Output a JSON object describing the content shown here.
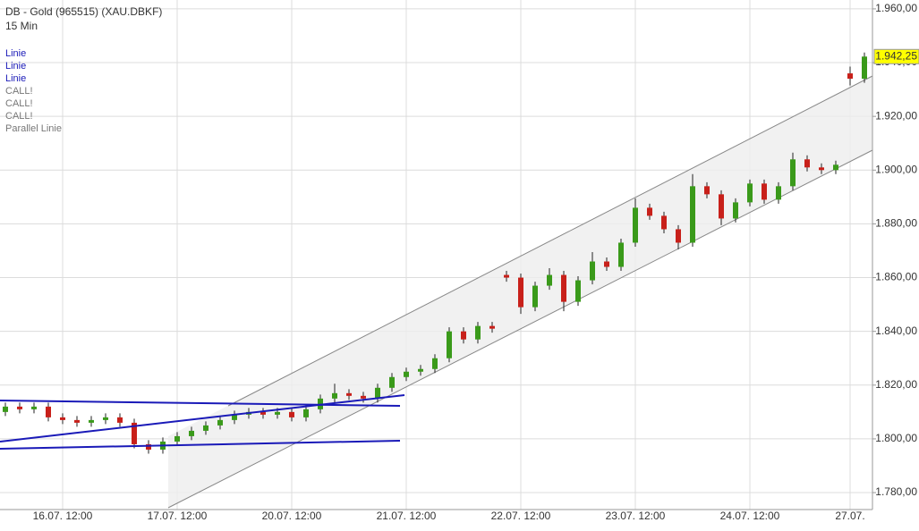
{
  "chart_data": {
    "type": "candlestick",
    "title": "DB - Gold (965515) (XAU.DBKF)",
    "subtitle": "15 Min",
    "legend": [
      "Linie",
      "Linie",
      "Linie",
      "CALL!",
      "CALL!",
      "CALL!",
      "Parallel Linie"
    ],
    "categories": [
      null,
      null,
      null,
      null,
      "16.07. 12:00",
      null,
      null,
      null,
      null,
      null,
      null,
      null,
      "17.07. 12:00",
      null,
      null,
      null,
      null,
      null,
      null,
      null,
      "20.07. 12:00",
      null,
      null,
      null,
      null,
      null,
      null,
      null,
      "21.07. 12:00",
      null,
      null,
      null,
      null,
      null,
      null,
      null,
      "22.07. 12:00",
      null,
      null,
      null,
      null,
      null,
      null,
      null,
      "23.07. 12:00",
      null,
      null,
      null,
      null,
      null,
      null,
      null,
      "24.07. 12:00",
      null,
      null,
      null,
      null,
      null,
      null,
      "27.07.",
      null
    ],
    "open": [
      1810,
      1812,
      1811,
      1812,
      1808,
      1807,
      1806,
      1807,
      1808,
      1806,
      1798,
      1796,
      1799,
      1801,
      1803,
      1805,
      1807,
      1809,
      1810,
      1809,
      1810,
      1808,
      1811,
      1815,
      1817,
      1816,
      1815,
      1819,
      1823,
      1825,
      1826,
      1830,
      1840,
      1837,
      1842,
      1861,
      1860,
      1849,
      1857,
      1861,
      1851,
      1859,
      1866,
      1864,
      1873,
      1886,
      1883,
      1878,
      1873,
      1894,
      1891,
      1882,
      1888,
      1895,
      1889,
      1894,
      1904,
      1901,
      1900,
      1936,
      1934
    ],
    "high": [
      1813.5,
      1813.5,
      1813.5,
      1813.5,
      1809.5,
      1808.5,
      1808.5,
      1809.5,
      1809.5,
      1807.5,
      1799.5,
      1800.5,
      1802.5,
      1804.5,
      1806.5,
      1808.5,
      1810.5,
      1811.5,
      1811.5,
      1811.5,
      1811.5,
      1812.5,
      1816.5,
      1820.5,
      1818.5,
      1817.5,
      1820.5,
      1824.5,
      1826.5,
      1827.5,
      1831.5,
      1841.5,
      1841.5,
      1843.5,
      1843.5,
      1862.5,
      1861.5,
      1858.5,
      1863.5,
      1862.5,
      1860.5,
      1869.5,
      1867.5,
      1874.5,
      1889.5,
      1887.5,
      1884.5,
      1879.5,
      1898.5,
      1895.5,
      1892.5,
      1889.5,
      1896.5,
      1896.5,
      1895.5,
      1906.5,
      1905.5,
      1902.5,
      1903.5,
      1938.5,
      1943.75
    ],
    "low": [
      1808.5,
      1809.5,
      1809.5,
      1806.5,
      1805.5,
      1804.5,
      1804.5,
      1805.5,
      1804.5,
      1796.5,
      1794.5,
      1794.5,
      1797.5,
      1799.5,
      1801.5,
      1803.5,
      1805.5,
      1807.5,
      1807.5,
      1807.5,
      1806.5,
      1806.5,
      1809.5,
      1813.5,
      1814.5,
      1813.5,
      1813.5,
      1817.5,
      1821.5,
      1823.5,
      1824.5,
      1828.5,
      1835.5,
      1835.5,
      1839.5,
      1858.5,
      1846.5,
      1847.5,
      1855.5,
      1847.5,
      1849.5,
      1857.5,
      1862.5,
      1862.5,
      1871.5,
      1881.5,
      1876.5,
      1870.5,
      1871.5,
      1889.5,
      1879.5,
      1880.5,
      1886.5,
      1887.5,
      1887.5,
      1892.5,
      1899.5,
      1898.5,
      1898.5,
      1931.5,
      1932.5
    ],
    "close": [
      1812,
      1811,
      1812,
      1808,
      1807,
      1806,
      1807,
      1808,
      1806,
      1798,
      1796,
      1799,
      1801,
      1803,
      1805,
      1807,
      1809,
      1810,
      1809,
      1810,
      1808,
      1811,
      1815,
      1817,
      1816,
      1815,
      1819,
      1823,
      1825,
      1826,
      1830,
      1840,
      1837,
      1842,
      1841,
      1860,
      1849,
      1857,
      1861,
      1851,
      1859,
      1866,
      1864,
      1873,
      1886,
      1883,
      1878,
      1873,
      1894,
      1891,
      1882,
      1888,
      1895,
      1889,
      1894,
      1904,
      1901,
      1900,
      1902,
      1934,
      1942.25
    ],
    "up_color": "#3a9a1a",
    "down_color": "#c8201a",
    "last_price": {
      "value": 1942.25,
      "label": "1.942,25"
    },
    "ylim": [
      1773.7,
      1963.3
    ],
    "yticks": [
      {
        "value": 1780,
        "label": "1.780,00"
      },
      {
        "value": 1800,
        "label": "1.800,00"
      },
      {
        "value": 1820,
        "label": "1.820,00"
      },
      {
        "value": 1840,
        "label": "1.840,00"
      },
      {
        "value": 1860,
        "label": "1.860,00"
      },
      {
        "value": 1880,
        "label": "1.880,00"
      },
      {
        "value": 1900,
        "label": "1.900,00"
      },
      {
        "value": 1920,
        "label": "1.920,00"
      },
      {
        "value": 1940,
        "label": "1.940,00"
      },
      {
        "value": 1960,
        "label": "1.960,00"
      }
    ],
    "grid": true
  }
}
